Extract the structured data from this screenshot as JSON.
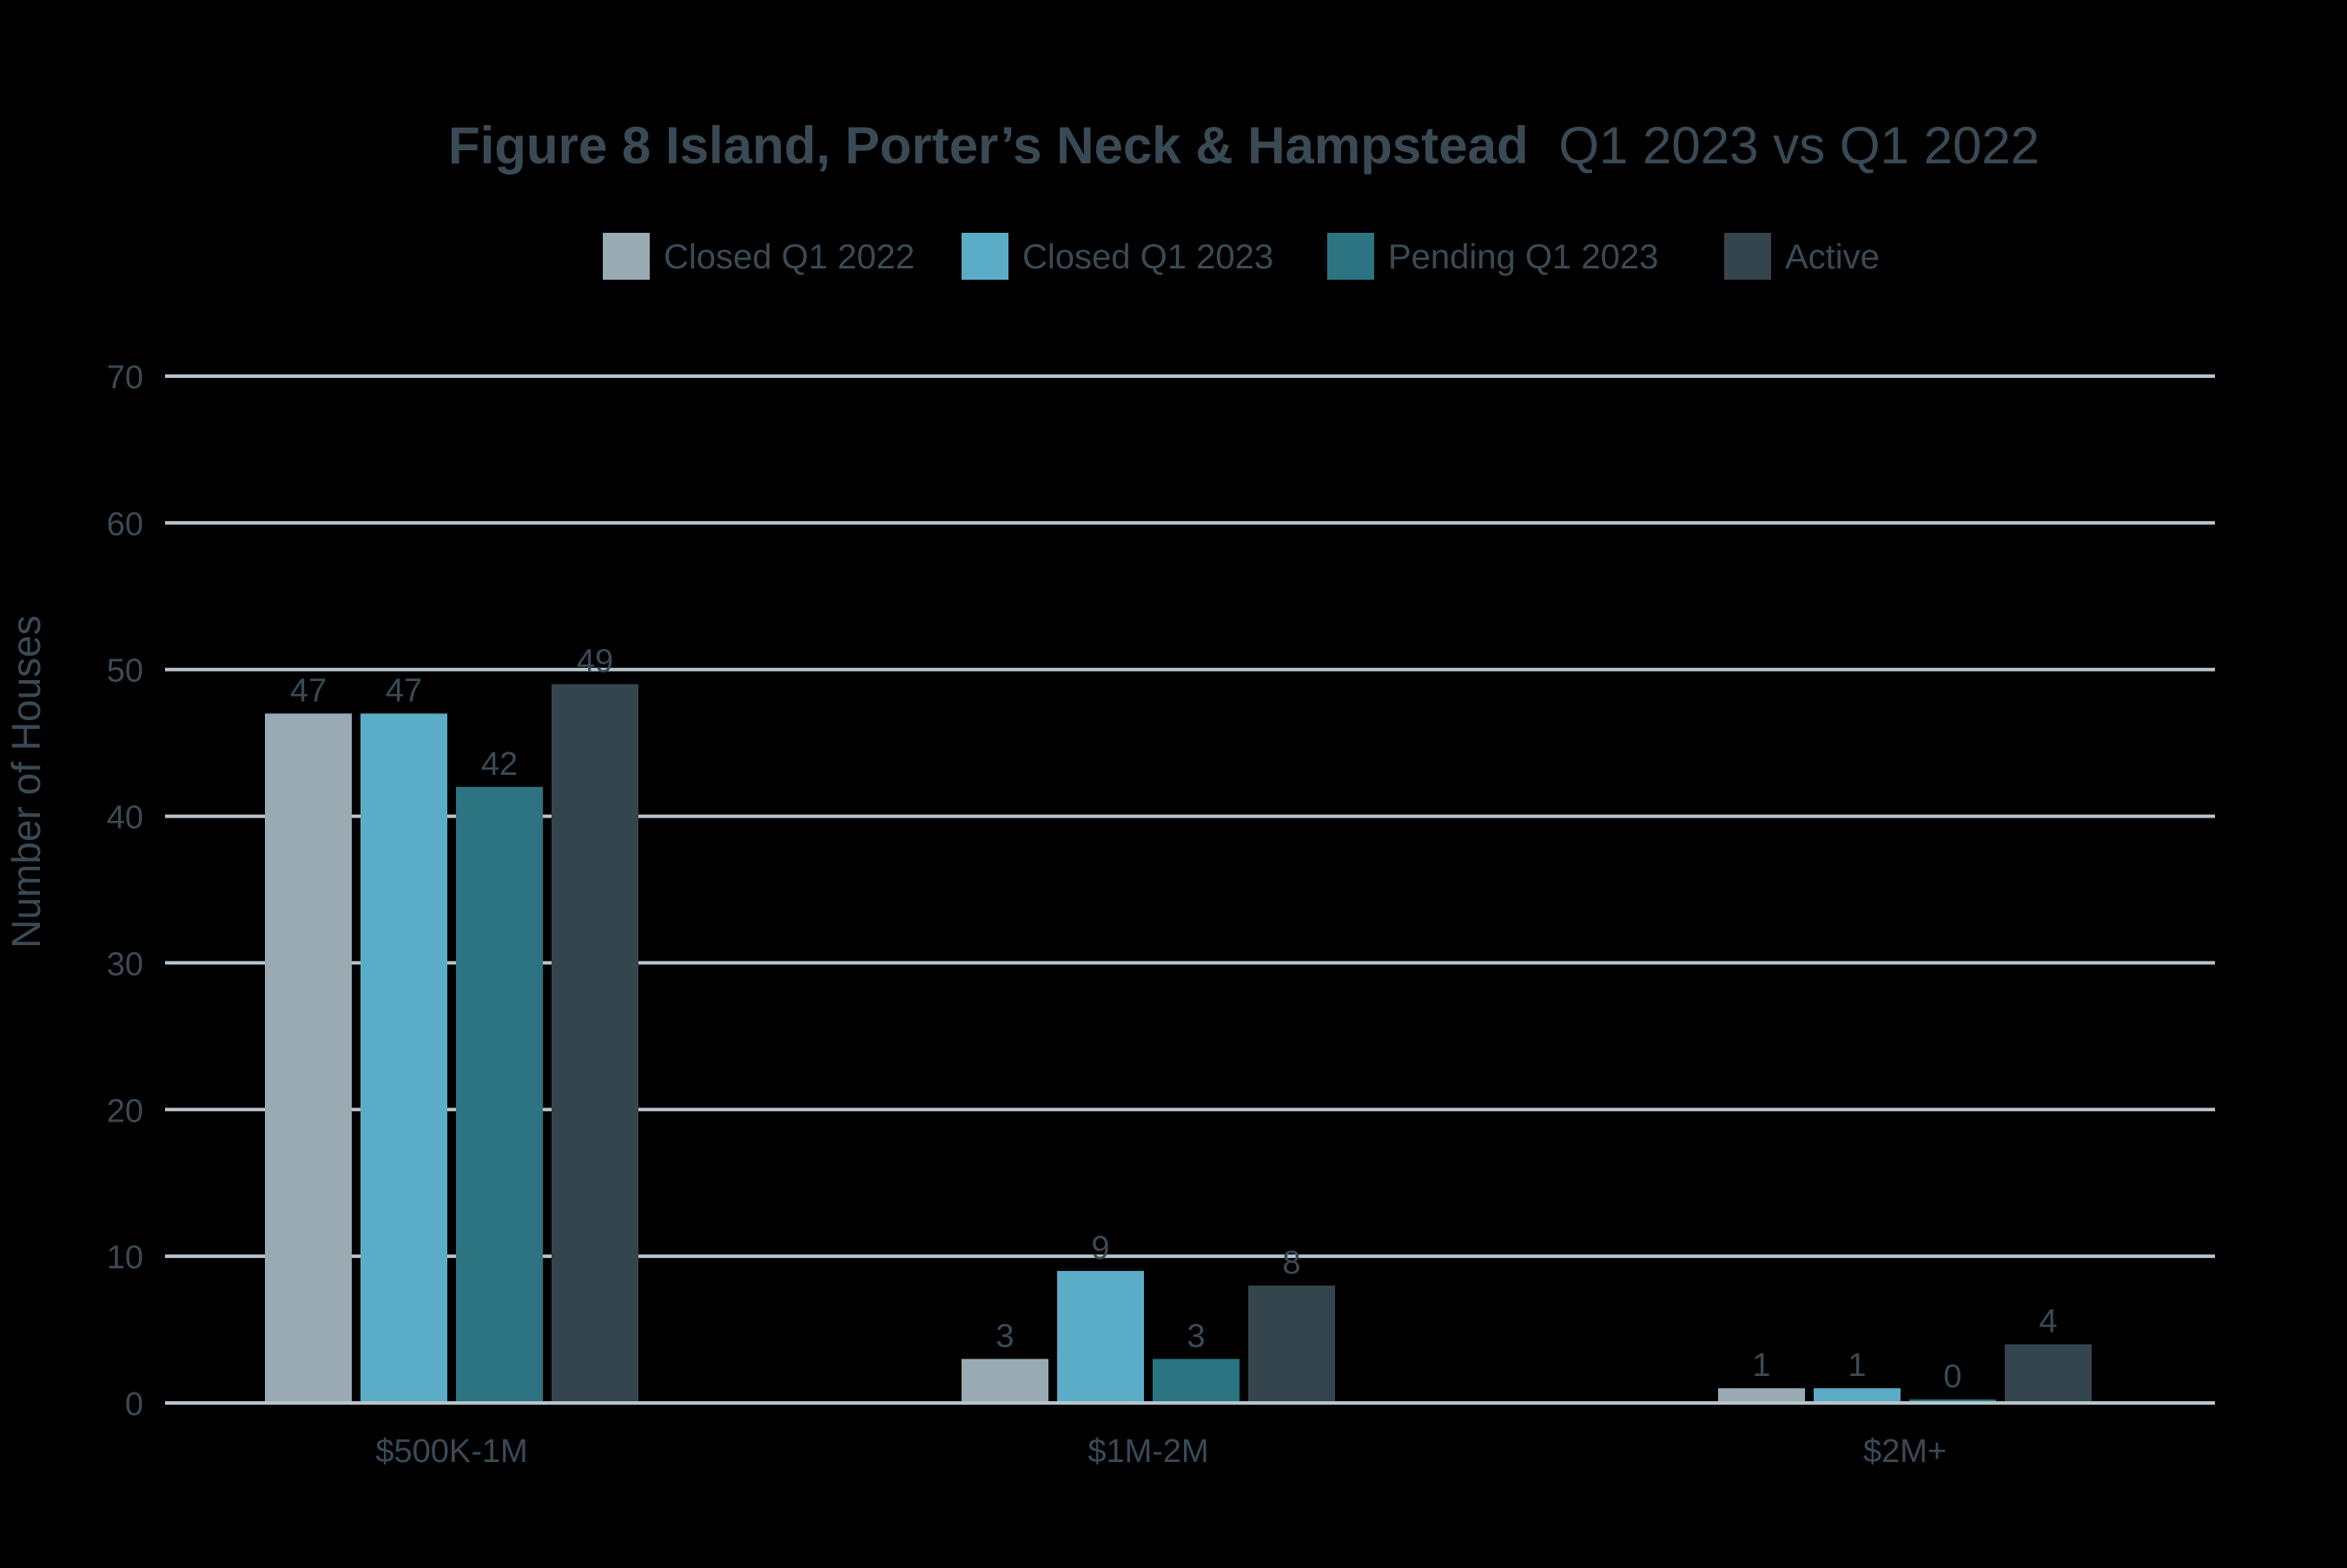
{
  "chart_data": {
    "type": "bar",
    "title": {
      "bold_part": "Figure 8 Island, Porter’s Neck & Hampstead",
      "light_part": "Q1 2023 vs Q1 2022"
    },
    "ylabel": "Number of Houses",
    "xlabel": "",
    "ylim": [
      0,
      70
    ],
    "yticks": [
      0,
      10,
      20,
      30,
      40,
      50,
      60,
      70
    ],
    "grid": true,
    "legend_position": "top-center",
    "categories": [
      "$500K-1M",
      "$1M-2M",
      "$2M+"
    ],
    "series": [
      {
        "name": "Closed Q1 2022",
        "values": [
          47,
          3,
          1
        ],
        "labels": [
          "47",
          "3",
          "1"
        ],
        "color": "#9aaab2"
      },
      {
        "name": "Closed Q1 2023",
        "values": [
          47,
          9,
          1
        ],
        "labels": [
          "47",
          "9",
          "1"
        ],
        "color": "#5aacc7"
      },
      {
        "name": "Pending Q1 2023",
        "values": [
          42,
          3,
          0
        ],
        "labels": [
          "42",
          "3",
          "0"
        ],
        "color": "#2d7482"
      },
      {
        "name": "Active",
        "values": [
          49,
          8,
          4
        ],
        "labels": [
          "49",
          "8",
          "4"
        ],
        "color": "#35454d"
      }
    ],
    "colors": {
      "text": "#3a4a55",
      "grid": "#b8c4cc",
      "background": "#000000"
    }
  }
}
